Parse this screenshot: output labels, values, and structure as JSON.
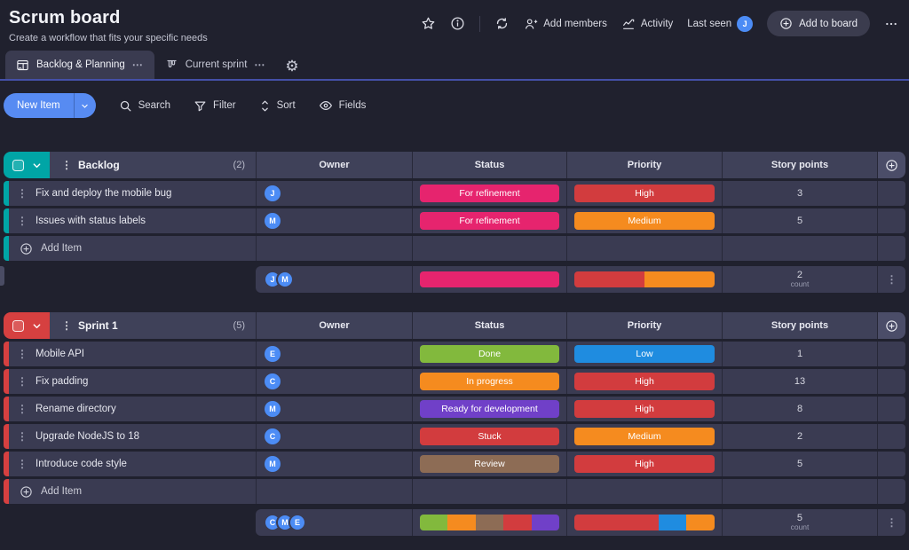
{
  "header": {
    "title": "Scrum board",
    "subtitle": "Create a workflow that fits your specific needs",
    "actions": {
      "add_members": "Add members",
      "activity": "Activity",
      "last_seen": "Last seen",
      "last_seen_avatar": "J",
      "add_to_board": "Add to board"
    }
  },
  "tabs": {
    "items": [
      {
        "label": "Backlog & Planning",
        "active": true
      },
      {
        "label": "Current sprint",
        "active": false
      }
    ]
  },
  "toolbar": {
    "new_item": "New Item",
    "search": "Search",
    "filter": "Filter",
    "sort": "Sort",
    "fields": "Fields"
  },
  "board": {
    "columns": {
      "owner": "Owner",
      "status": "Status",
      "priority": "Priority",
      "points": "Story points"
    },
    "add_item_label": "Add Item",
    "count_label": "count",
    "groups": [
      {
        "name": "Backlog",
        "count": "(2)",
        "color": "#00a5a6",
        "rows": [
          {
            "name": "Fix and deploy the mobile bug",
            "owner": "J",
            "status": {
              "label": "For refinement",
              "color": "#e6246e"
            },
            "priority": {
              "label": "High",
              "color": "#d23c3e"
            },
            "points": "3"
          },
          {
            "name": "Issues with status labels",
            "owner": "M",
            "status": {
              "label": "For refinement",
              "color": "#e6246e"
            },
            "priority": {
              "label": "Medium",
              "color": "#f58b1f"
            },
            "points": "5"
          }
        ],
        "summary": {
          "owners": [
            "J",
            "M"
          ],
          "status_bar": [
            {
              "color": "#e6246e",
              "pct": 100
            }
          ],
          "priority_bar": [
            {
              "color": "#d23c3e",
              "pct": 50
            },
            {
              "color": "#f58b1f",
              "pct": 50
            }
          ],
          "count_value": "2"
        }
      },
      {
        "name": "Sprint 1",
        "count": "(5)",
        "color": "#d64040",
        "rows": [
          {
            "name": "Mobile API",
            "owner": "E",
            "status": {
              "label": "Done",
              "color": "#82b93d"
            },
            "priority": {
              "label": "Low",
              "color": "#1f8ce0"
            },
            "points": "1"
          },
          {
            "name": "Fix padding",
            "owner": "C",
            "status": {
              "label": "In progress",
              "color": "#f58b1f"
            },
            "priority": {
              "label": "High",
              "color": "#d23c3e"
            },
            "points": "13"
          },
          {
            "name": "Rename directory",
            "owner": "M",
            "status": {
              "label": "Ready for development",
              "color": "#7040c8"
            },
            "priority": {
              "label": "High",
              "color": "#d23c3e"
            },
            "points": "8"
          },
          {
            "name": "Upgrade NodeJS to 18",
            "owner": "C",
            "status": {
              "label": "Stuck",
              "color": "#d23c3e"
            },
            "priority": {
              "label": "Medium",
              "color": "#f58b1f"
            },
            "points": "2"
          },
          {
            "name": "Introduce code style",
            "owner": "M",
            "status": {
              "label": "Review",
              "color": "#8d6c55"
            },
            "priority": {
              "label": "High",
              "color": "#d23c3e"
            },
            "points": "5"
          }
        ],
        "summary": {
          "owners": [
            "C",
            "M",
            "E"
          ],
          "status_bar": [
            {
              "color": "#82b93d",
              "pct": 20
            },
            {
              "color": "#f58b1f",
              "pct": 20
            },
            {
              "color": "#8d6c55",
              "pct": 20
            },
            {
              "color": "#d23c3e",
              "pct": 20
            },
            {
              "color": "#7040c8",
              "pct": 20
            }
          ],
          "priority_bar": [
            {
              "color": "#d23c3e",
              "pct": 60
            },
            {
              "color": "#1f8ce0",
              "pct": 20
            },
            {
              "color": "#f58b1f",
              "pct": 20
            }
          ],
          "count_value": "5"
        }
      }
    ]
  },
  "colors": {
    "accent_blue": "#578bf2",
    "avatar_blue": "#4c8cf5",
    "group_teal": "#00a5a6",
    "group_red": "#d64040",
    "row_bg": "#3a3b52",
    "page_bg": "#20212e"
  }
}
